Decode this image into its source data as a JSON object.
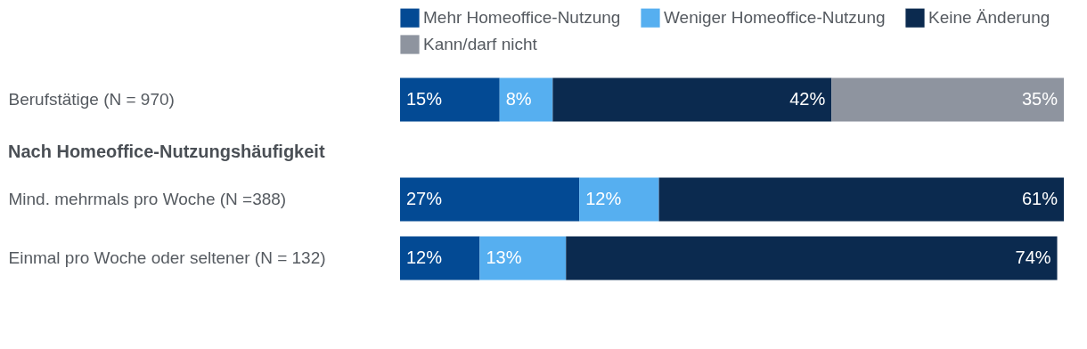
{
  "chart_data": {
    "type": "bar",
    "orientation": "horizontal",
    "stacked": true,
    "legend": "top",
    "categories": [
      "Berufstätige (N = 970)",
      "Mind. mehrmals pro Woche (N =388)",
      "Einmal pro Woche oder seltener (N = 132)"
    ],
    "annotations": [
      "Nach Homeoffice-Nutzungshäufigkeit"
    ],
    "series": [
      {
        "name": "Mehr Homeoffice-Nutzung",
        "color": "#034a94",
        "values": [
          15,
          27,
          12
        ],
        "value_labels": [
          "15%",
          "27%",
          "12%"
        ]
      },
      {
        "name": "Weniger Homeoffice-Nutzung",
        "color": "#56aff0",
        "values": [
          8,
          12,
          13
        ],
        "value_labels": [
          "8%",
          "12%",
          "13%"
        ]
      },
      {
        "name": "Keine Änderung",
        "color": "#0b2a4f",
        "values": [
          42,
          61,
          74
        ],
        "value_labels": [
          "42%",
          "61%",
          "74%"
        ]
      },
      {
        "name": "Kann/darf nicht",
        "color": "#8e949f",
        "values": [
          35,
          null,
          null
        ],
        "value_labels": [
          "35%",
          null,
          null
        ]
      }
    ]
  }
}
